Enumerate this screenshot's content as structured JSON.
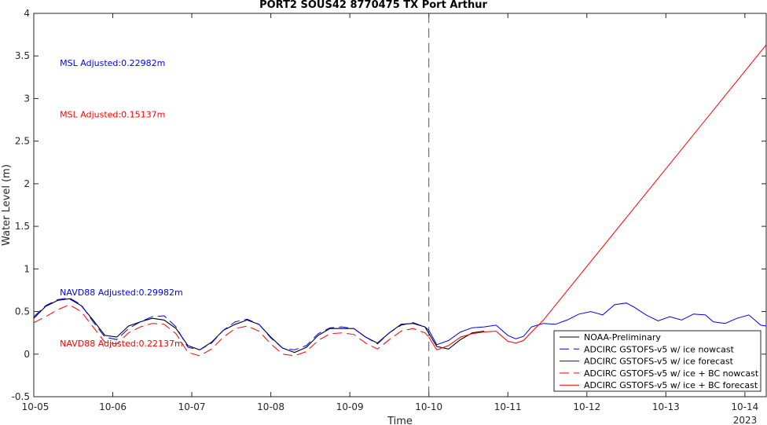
{
  "chart_data": {
    "type": "line",
    "title": "PORT2 SOUS42 8770475 TX Port Arthur",
    "xlabel": "Time",
    "ylabel": "Water Level (m)",
    "xlim": [
      0,
      9.27
    ],
    "ylim": [
      -0.5,
      4
    ],
    "x_ticks": [
      0,
      1,
      2,
      3,
      4,
      5,
      6,
      7,
      8,
      9
    ],
    "x_tick_labels": [
      "10-05",
      "10-06",
      "10-07",
      "10-08",
      "10-09",
      "10-10",
      "10-11",
      "10-12",
      "10-13",
      "10-14"
    ],
    "x_year_label": "2023",
    "y_ticks": [
      -0.5,
      0,
      0.5,
      1,
      1.5,
      2,
      2.5,
      3,
      3.5,
      4
    ],
    "y_tick_labels": [
      "-0.5",
      "0",
      "0.5",
      "1",
      "1.5",
      "2",
      "2.5",
      "3",
      "3.5",
      "4"
    ],
    "nowcast_forecast_divider_x": 5.0,
    "grid": false,
    "legend_position": "bottom-right",
    "annotations": [
      {
        "text": "MSL Adjusted:0.22982m",
        "x": 0.33,
        "y": 3.38,
        "color": "#0000ff"
      },
      {
        "text": "MSL Adjusted:0.15137m",
        "x": 0.33,
        "y": 2.78,
        "color": "#ff0000"
      },
      {
        "text": "NAVD88 Adjusted:0.29982m",
        "x": 0.33,
        "y": 0.69,
        "color": "#0000ff"
      },
      {
        "text": "NAVD88 Adjusted:0.22137m",
        "x": 0.33,
        "y": 0.09,
        "color": "#ff0000"
      }
    ],
    "series": [
      {
        "name": "NOAA-Preliminary",
        "color": "#000000",
        "dash": "solid",
        "x": [
          0.0,
          0.15,
          0.3,
          0.45,
          0.6,
          0.75,
          0.9,
          1.05,
          1.2,
          1.35,
          1.5,
          1.65,
          1.8,
          1.95,
          2.1,
          2.25,
          2.4,
          2.55,
          2.7,
          2.85,
          3.0,
          3.15,
          3.3,
          3.45,
          3.6,
          3.75,
          3.9,
          4.05,
          4.2,
          4.35,
          4.5,
          4.65,
          4.8,
          4.95,
          5.1,
          5.25,
          5.4,
          5.55,
          5.7
        ],
        "y": [
          0.42,
          0.56,
          0.63,
          0.65,
          0.57,
          0.4,
          0.22,
          0.2,
          0.33,
          0.38,
          0.42,
          0.4,
          0.3,
          0.1,
          0.05,
          0.14,
          0.28,
          0.35,
          0.4,
          0.35,
          0.2,
          0.07,
          0.02,
          0.08,
          0.22,
          0.3,
          0.3,
          0.3,
          0.2,
          0.13,
          0.25,
          0.35,
          0.36,
          0.32,
          0.09,
          0.06,
          0.17,
          0.25,
          0.27
        ]
      },
      {
        "name": "ADCIRC GSTOFS-v5 w/ ice nowcast",
        "color": "#0000ff",
        "dash": "dashed",
        "x": [
          0.0,
          0.15,
          0.3,
          0.45,
          0.6,
          0.75,
          0.9,
          1.05,
          1.2,
          1.35,
          1.5,
          1.65,
          1.8,
          1.95,
          2.1,
          2.25,
          2.4,
          2.55,
          2.7,
          2.85,
          3.0,
          3.15,
          3.3,
          3.45,
          3.6,
          3.75,
          3.9,
          4.05,
          4.2,
          4.35,
          4.5,
          4.65,
          4.8,
          4.95,
          5.0
        ],
        "y": [
          0.44,
          0.57,
          0.64,
          0.66,
          0.58,
          0.38,
          0.2,
          0.17,
          0.3,
          0.38,
          0.44,
          0.45,
          0.32,
          0.08,
          0.05,
          0.13,
          0.28,
          0.38,
          0.41,
          0.35,
          0.19,
          0.07,
          0.05,
          0.1,
          0.24,
          0.31,
          0.32,
          0.3,
          0.2,
          0.12,
          0.25,
          0.34,
          0.37,
          0.32,
          0.28
        ]
      },
      {
        "name": "ADCIRC GSTOFS-v5 w/ ice forecast",
        "color": "#0000ff",
        "dash": "solid",
        "x": [
          5.0,
          5.1,
          5.25,
          5.4,
          5.55,
          5.7,
          5.85,
          6.0,
          6.1,
          6.2,
          6.3,
          6.45,
          6.6,
          6.75,
          6.9,
          7.05,
          7.2,
          7.35,
          7.5,
          7.6,
          7.75,
          7.9,
          8.05,
          8.2,
          8.35,
          8.5,
          8.6,
          8.75,
          8.9,
          9.05,
          9.2,
          9.27
        ],
        "y": [
          0.28,
          0.11,
          0.16,
          0.26,
          0.31,
          0.32,
          0.34,
          0.22,
          0.18,
          0.21,
          0.32,
          0.36,
          0.35,
          0.4,
          0.47,
          0.5,
          0.46,
          0.58,
          0.6,
          0.55,
          0.46,
          0.39,
          0.44,
          0.4,
          0.47,
          0.46,
          0.38,
          0.36,
          0.42,
          0.46,
          0.34,
          0.33
        ]
      },
      {
        "name": "ADCIRC GSTOFS-v5 w/ ice + BC nowcast",
        "color": "#ff0000",
        "dash": "dashed",
        "x": [
          0.0,
          0.15,
          0.3,
          0.45,
          0.6,
          0.75,
          0.9,
          1.05,
          1.2,
          1.35,
          1.5,
          1.65,
          1.8,
          1.95,
          2.1,
          2.25,
          2.4,
          2.55,
          2.7,
          2.85,
          3.0,
          3.15,
          3.3,
          3.45,
          3.6,
          3.75,
          3.9,
          4.05,
          4.2,
          4.35,
          4.5,
          4.65,
          4.8,
          4.95,
          5.0
        ],
        "y": [
          0.37,
          0.44,
          0.52,
          0.58,
          0.5,
          0.32,
          0.14,
          0.12,
          0.25,
          0.32,
          0.36,
          0.35,
          0.24,
          0.02,
          -0.02,
          0.06,
          0.2,
          0.3,
          0.33,
          0.27,
          0.12,
          0.0,
          -0.02,
          0.03,
          0.16,
          0.24,
          0.25,
          0.23,
          0.13,
          0.06,
          0.17,
          0.27,
          0.3,
          0.25,
          0.2
        ]
      },
      {
        "name": "ADCIRC GSTOFS-v5 w/ ice + BC forecast",
        "color": "#ff0000",
        "dash": "solid",
        "x": [
          5.0,
          5.1,
          5.25,
          5.4,
          5.55,
          5.7,
          5.85,
          6.0,
          6.1,
          6.2,
          6.3,
          6.45,
          9.27
        ],
        "y": [
          0.2,
          0.05,
          0.1,
          0.2,
          0.24,
          0.26,
          0.27,
          0.15,
          0.13,
          0.16,
          0.26,
          0.4,
          3.63
        ]
      }
    ]
  }
}
